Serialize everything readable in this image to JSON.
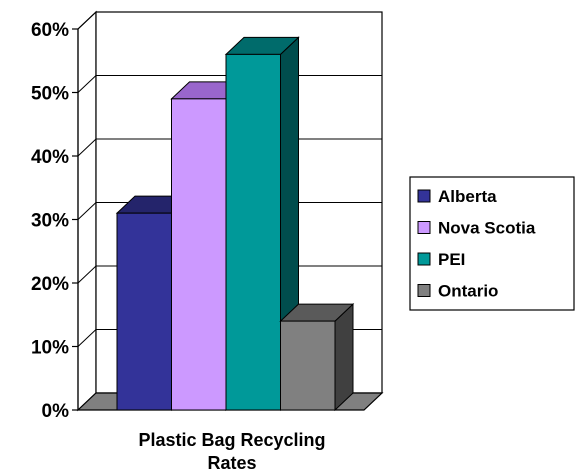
{
  "chart_data": {
    "type": "bar",
    "categories": [
      "Plastic Bag Recycling Rates"
    ],
    "xlabel_lines": [
      "Plastic Bag Recycling",
      "Rates"
    ],
    "series": [
      {
        "name": "Alberta",
        "values": [
          0.31
        ],
        "color": "#333399",
        "top": "#24246b",
        "side": "#1c1c55"
      },
      {
        "name": "Nova Scotia",
        "values": [
          0.49
        ],
        "color": "#cc99ff",
        "top": "#9966cc",
        "side": "#7a52a3"
      },
      {
        "name": "PEI",
        "values": [
          0.56
        ],
        "color": "#009999",
        "top": "#006b6b",
        "side": "#004d4d"
      },
      {
        "name": "Ontario",
        "values": [
          0.14
        ],
        "color": "#808080",
        "top": "#5a5a5a",
        "side": "#404040"
      }
    ],
    "ylim": [
      0,
      0.6
    ],
    "yticks": [
      {
        "value": 0,
        "label": "0%"
      },
      {
        "value": 0.1,
        "label": "10%"
      },
      {
        "value": 0.2,
        "label": "20%"
      },
      {
        "value": 0.3,
        "label": "30%"
      },
      {
        "value": 0.4,
        "label": "40%"
      },
      {
        "value": 0.5,
        "label": "50%"
      },
      {
        "value": 0.6,
        "label": "60%"
      }
    ],
    "grid": true,
    "legend_position": "right"
  }
}
